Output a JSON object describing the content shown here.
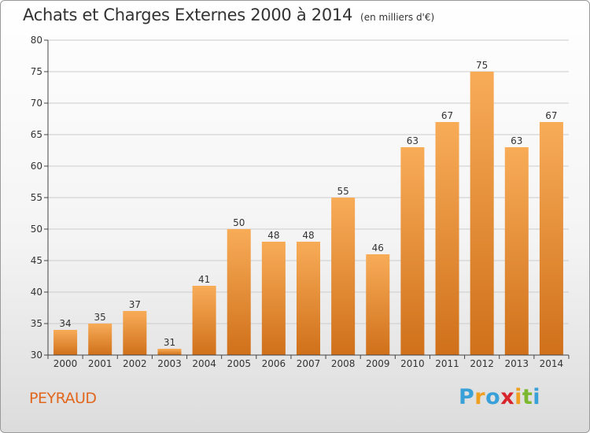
{
  "title": "Achats et Charges Externes 2000 à 2014",
  "unit_note": "(en milliers d'€)",
  "commune": "PEYRAUD",
  "logo": {
    "text": "Proxiti",
    "letters": [
      {
        "ch": "P",
        "color": "#3aa0d8"
      },
      {
        "ch": "r",
        "color": "#f0a020"
      },
      {
        "ch": "o",
        "color": "#3aa0d8"
      },
      {
        "ch": "x",
        "color": "#d8242c"
      },
      {
        "ch": "i",
        "color": "#f0a020"
      },
      {
        "ch": "t",
        "color": "#7cb82f"
      },
      {
        "ch": "i",
        "color": "#3aa0d8"
      }
    ]
  },
  "colors": {
    "bar_light": "#f8ac58",
    "bar_dark": "#d0701a",
    "axis": "#444444",
    "grid": "#cccccc",
    "text": "#333333"
  },
  "chart_data": {
    "type": "bar",
    "title": "Achats et Charges Externes 2000 à 2014",
    "categories": [
      "2000",
      "2001",
      "2002",
      "2003",
      "2004",
      "2005",
      "2006",
      "2007",
      "2008",
      "2009",
      "2010",
      "2011",
      "2012",
      "2013",
      "2014"
    ],
    "values": [
      34,
      35,
      37,
      31,
      41,
      50,
      48,
      48,
      55,
      46,
      63,
      67,
      75,
      63,
      67
    ],
    "ylim": [
      30,
      80
    ],
    "yticks": [
      30,
      35,
      40,
      45,
      50,
      55,
      60,
      65,
      70,
      75,
      80
    ],
    "grid": "horizontal",
    "data_labels": true
  }
}
